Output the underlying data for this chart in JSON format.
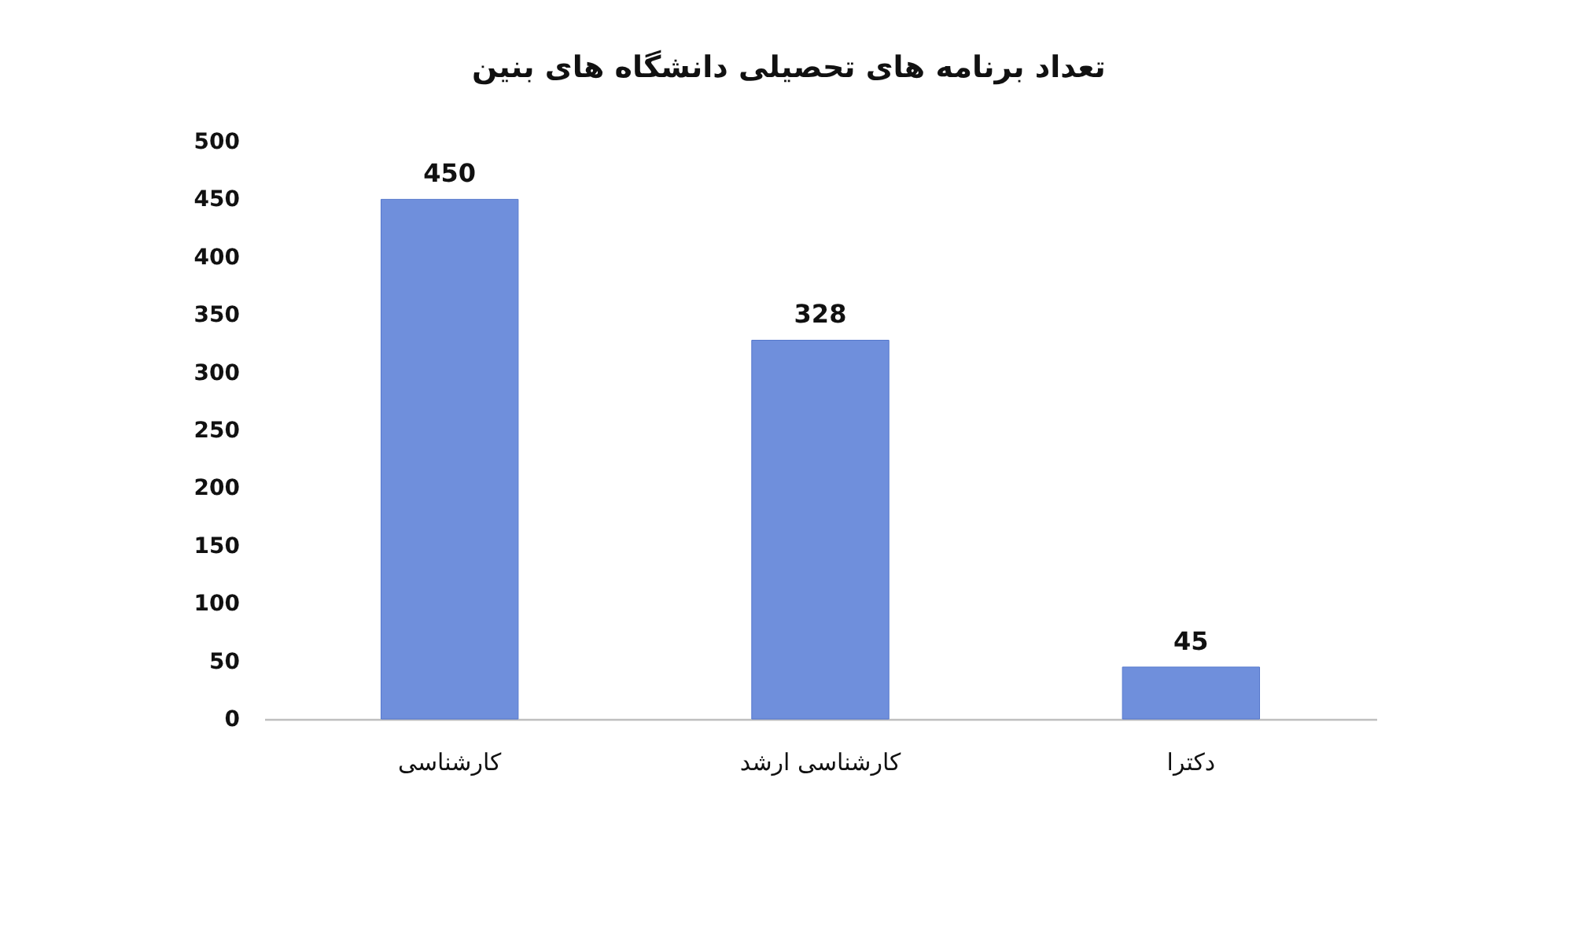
{
  "chart_data": {
    "type": "bar",
    "title": "تعداد برنامه های تحصیلی دانشگاه های بنین",
    "categories": [
      "کارشناسی",
      "کارشناسی ارشد",
      "دکترا"
    ],
    "values": [
      450,
      328,
      45
    ],
    "color": "#6f8fdc",
    "ylim": [
      0,
      500
    ],
    "yticks": [
      0,
      50,
      100,
      150,
      200,
      250,
      300,
      350,
      400,
      450,
      500
    ],
    "grid": false,
    "data_labels": true
  }
}
